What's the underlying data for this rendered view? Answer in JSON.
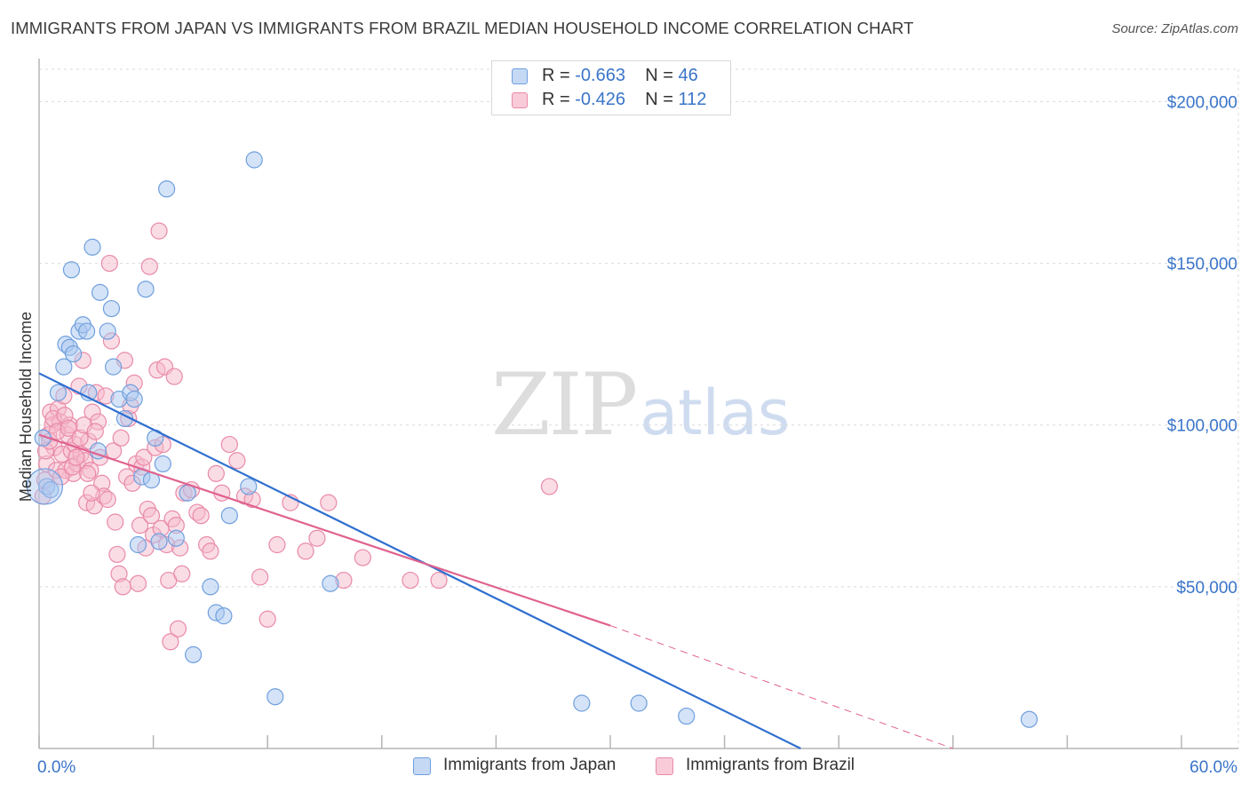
{
  "title": "IMMIGRANTS FROM JAPAN VS IMMIGRANTS FROM BRAZIL MEDIAN HOUSEHOLD INCOME CORRELATION CHART",
  "source": "Source: ZipAtlas.com",
  "watermark": {
    "zip": "ZIP",
    "atlas": "atlas"
  },
  "legend": {
    "japan": {
      "r_label": "R = ",
      "r_value": "-0.663",
      "n_label": "N = ",
      "n_value": "46"
    },
    "brazil": {
      "r_label": "R = ",
      "r_value": "-0.426",
      "n_label": "N = ",
      "n_value": "112"
    }
  },
  "bottom_legend": {
    "japan": "Immigrants from Japan",
    "brazil": "Immigrants from Brazil"
  },
  "colors": {
    "japan_fill": "#a9c8f0",
    "japan_stroke": "#6f9fde",
    "japan_line": "#2f6fd0",
    "brazil_fill": "#f6b9cc",
    "brazil_stroke": "#e98aa8",
    "brazil_line": "#e0628f",
    "tick_label": "#3a74c9",
    "grid": "#d9d9d9"
  },
  "chart_data": {
    "type": "scatter",
    "title": "IMMIGRANTS FROM JAPAN VS IMMIGRANTS FROM BRAZIL MEDIAN HOUSEHOLD INCOME CORRELATION CHART",
    "xlabel": "",
    "ylabel": "Median Household Income",
    "xlim": [
      0,
      60
    ],
    "ylim": [
      0,
      210000
    ],
    "x_tick_labels": [
      "0.0%",
      "60.0%"
    ],
    "y_ticks": [
      50000,
      100000,
      150000,
      200000
    ],
    "y_tick_labels": [
      "$50,000",
      "$100,000",
      "$150,000",
      "$200,000"
    ],
    "series": [
      {
        "name": "Immigrants from Japan",
        "points": [
          [
            0.4,
            81000
          ],
          [
            1.0,
            110000
          ],
          [
            1.3,
            118000
          ],
          [
            1.4,
            125000
          ],
          [
            1.6,
            124000
          ],
          [
            1.8,
            122000
          ],
          [
            1.7,
            148000
          ],
          [
            2.1,
            129000
          ],
          [
            2.3,
            131000
          ],
          [
            2.5,
            129000
          ],
          [
            2.6,
            110000
          ],
          [
            2.8,
            155000
          ],
          [
            3.1,
            92000
          ],
          [
            3.2,
            141000
          ],
          [
            3.8,
            136000
          ],
          [
            3.6,
            129000
          ],
          [
            3.9,
            118000
          ],
          [
            4.2,
            108000
          ],
          [
            4.5,
            102000
          ],
          [
            4.8,
            110000
          ],
          [
            5.0,
            108000
          ],
          [
            5.2,
            63000
          ],
          [
            5.4,
            84000
          ],
          [
            5.6,
            142000
          ],
          [
            5.9,
            83000
          ],
          [
            6.1,
            96000
          ],
          [
            6.3,
            64000
          ],
          [
            6.5,
            88000
          ],
          [
            6.7,
            173000
          ],
          [
            7.2,
            65000
          ],
          [
            7.8,
            79000
          ],
          [
            8.1,
            29000
          ],
          [
            9.0,
            50000
          ],
          [
            9.3,
            42000
          ],
          [
            9.7,
            41000
          ],
          [
            10.0,
            72000
          ],
          [
            11.0,
            81000
          ],
          [
            11.3,
            182000
          ],
          [
            12.4,
            16000
          ],
          [
            15.3,
            51000
          ],
          [
            28.5,
            14000
          ],
          [
            31.5,
            14000
          ],
          [
            34.0,
            10000
          ],
          [
            52.0,
            9000
          ],
          [
            0.2,
            96000
          ],
          [
            0.6,
            80000
          ]
        ]
      },
      {
        "name": "Immigrants from Brazil",
        "points": [
          [
            0.2,
            78000
          ],
          [
            0.3,
            83000
          ],
          [
            0.4,
            88000
          ],
          [
            0.5,
            97000
          ],
          [
            0.6,
            104000
          ],
          [
            0.7,
            100000
          ],
          [
            0.8,
            93000
          ],
          [
            0.9,
            86000
          ],
          [
            1.0,
            105000
          ],
          [
            1.1,
            101000
          ],
          [
            1.2,
            91000
          ],
          [
            1.3,
            109000
          ],
          [
            1.4,
            86000
          ],
          [
            1.5,
            97000
          ],
          [
            1.6,
            100000
          ],
          [
            1.7,
            92000
          ],
          [
            1.8,
            85000
          ],
          [
            1.9,
            94000
          ],
          [
            2.0,
            88000
          ],
          [
            2.1,
            112000
          ],
          [
            2.2,
            91000
          ],
          [
            2.3,
            120000
          ],
          [
            2.4,
            89000
          ],
          [
            2.5,
            76000
          ],
          [
            2.6,
            95000
          ],
          [
            2.7,
            86000
          ],
          [
            2.8,
            104000
          ],
          [
            2.9,
            75000
          ],
          [
            3.0,
            110000
          ],
          [
            3.1,
            101000
          ],
          [
            3.2,
            90000
          ],
          [
            3.3,
            82000
          ],
          [
            3.4,
            78000
          ],
          [
            3.5,
            109000
          ],
          [
            3.6,
            77000
          ],
          [
            3.7,
            150000
          ],
          [
            3.8,
            126000
          ],
          [
            3.9,
            92000
          ],
          [
            4.0,
            70000
          ],
          [
            4.1,
            60000
          ],
          [
            4.2,
            54000
          ],
          [
            4.3,
            96000
          ],
          [
            4.4,
            50000
          ],
          [
            4.5,
            120000
          ],
          [
            4.6,
            84000
          ],
          [
            4.7,
            102000
          ],
          [
            4.8,
            106000
          ],
          [
            4.9,
            82000
          ],
          [
            5.0,
            113000
          ],
          [
            5.1,
            88000
          ],
          [
            5.2,
            51000
          ],
          [
            5.3,
            69000
          ],
          [
            5.4,
            87000
          ],
          [
            5.5,
            90000
          ],
          [
            5.6,
            62000
          ],
          [
            5.7,
            74000
          ],
          [
            5.8,
            149000
          ],
          [
            5.9,
            72000
          ],
          [
            6.0,
            66000
          ],
          [
            6.1,
            93000
          ],
          [
            6.2,
            117000
          ],
          [
            6.3,
            160000
          ],
          [
            6.4,
            68000
          ],
          [
            6.5,
            94000
          ],
          [
            6.6,
            118000
          ],
          [
            6.7,
            63000
          ],
          [
            6.8,
            52000
          ],
          [
            6.9,
            33000
          ],
          [
            7.0,
            71000
          ],
          [
            7.1,
            115000
          ],
          [
            7.2,
            69000
          ],
          [
            7.3,
            37000
          ],
          [
            7.4,
            62000
          ],
          [
            7.5,
            54000
          ],
          [
            7.6,
            79000
          ],
          [
            8.0,
            80000
          ],
          [
            8.3,
            73000
          ],
          [
            8.5,
            72000
          ],
          [
            8.8,
            63000
          ],
          [
            9.0,
            61000
          ],
          [
            9.3,
            85000
          ],
          [
            9.6,
            79000
          ],
          [
            10.0,
            94000
          ],
          [
            10.4,
            89000
          ],
          [
            10.8,
            78000
          ],
          [
            11.2,
            77000
          ],
          [
            11.6,
            53000
          ],
          [
            12.0,
            40000
          ],
          [
            12.5,
            63000
          ],
          [
            13.2,
            76000
          ],
          [
            14.0,
            61000
          ],
          [
            14.6,
            65000
          ],
          [
            15.2,
            76000
          ],
          [
            16.0,
            52000
          ],
          [
            17.0,
            59000
          ],
          [
            19.5,
            52000
          ],
          [
            21.0,
            52000
          ],
          [
            26.8,
            81000
          ],
          [
            0.35,
            92000
          ],
          [
            0.55,
            95000
          ],
          [
            0.75,
            102000
          ],
          [
            0.95,
            98000
          ],
          [
            1.15,
            84000
          ],
          [
            1.35,
            103000
          ],
          [
            1.55,
            99000
          ],
          [
            1.75,
            87000
          ],
          [
            1.95,
            90000
          ],
          [
            2.15,
            96000
          ],
          [
            2.35,
            100000
          ],
          [
            2.55,
            85000
          ],
          [
            2.75,
            79000
          ],
          [
            2.95,
            98000
          ]
        ]
      }
    ],
    "trend_lines": [
      {
        "series": "Immigrants from Japan",
        "x": [
          0,
          40
        ],
        "y": [
          116000,
          0
        ],
        "style": "solid"
      },
      {
        "series": "Immigrants from Brazil",
        "x": [
          0,
          30
        ],
        "y": [
          97000,
          38000
        ],
        "style": "solid"
      },
      {
        "series": "Immigrants from Brazil",
        "x": [
          30,
          48
        ],
        "y": [
          38000,
          0
        ],
        "style": "dashed"
      }
    ],
    "legend_position": "top-center"
  }
}
